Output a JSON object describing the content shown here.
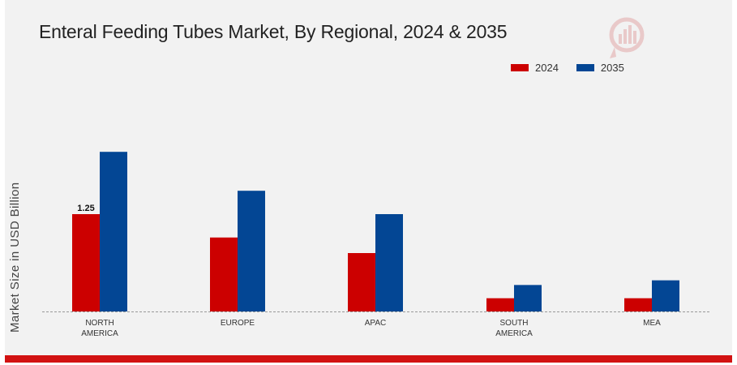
{
  "chart_data": {
    "type": "bar",
    "title": "Enteral Feeding Tubes Market, By Regional, 2024 & 2035",
    "ylabel": "Market Size in USD Billion",
    "xlabel": "",
    "categories": [
      [
        "NORTH",
        "AMERICA"
      ],
      [
        "EUROPE"
      ],
      [
        "APAC"
      ],
      [
        "SOUTH",
        "AMERICA"
      ],
      [
        "MEA"
      ]
    ],
    "series": [
      {
        "name": "2024",
        "color": "#cc0000",
        "values": [
          1.25,
          0.95,
          0.75,
          0.17,
          0.17
        ]
      },
      {
        "name": "2035",
        "color": "#034694",
        "values": [
          2.05,
          1.55,
          1.25,
          0.34,
          0.4
        ]
      }
    ],
    "data_labels": [
      {
        "series": 0,
        "index": 0,
        "text": "1.25"
      }
    ],
    "ylim": [
      0,
      4.0
    ],
    "grid": false,
    "legend_position": "top-right"
  }
}
